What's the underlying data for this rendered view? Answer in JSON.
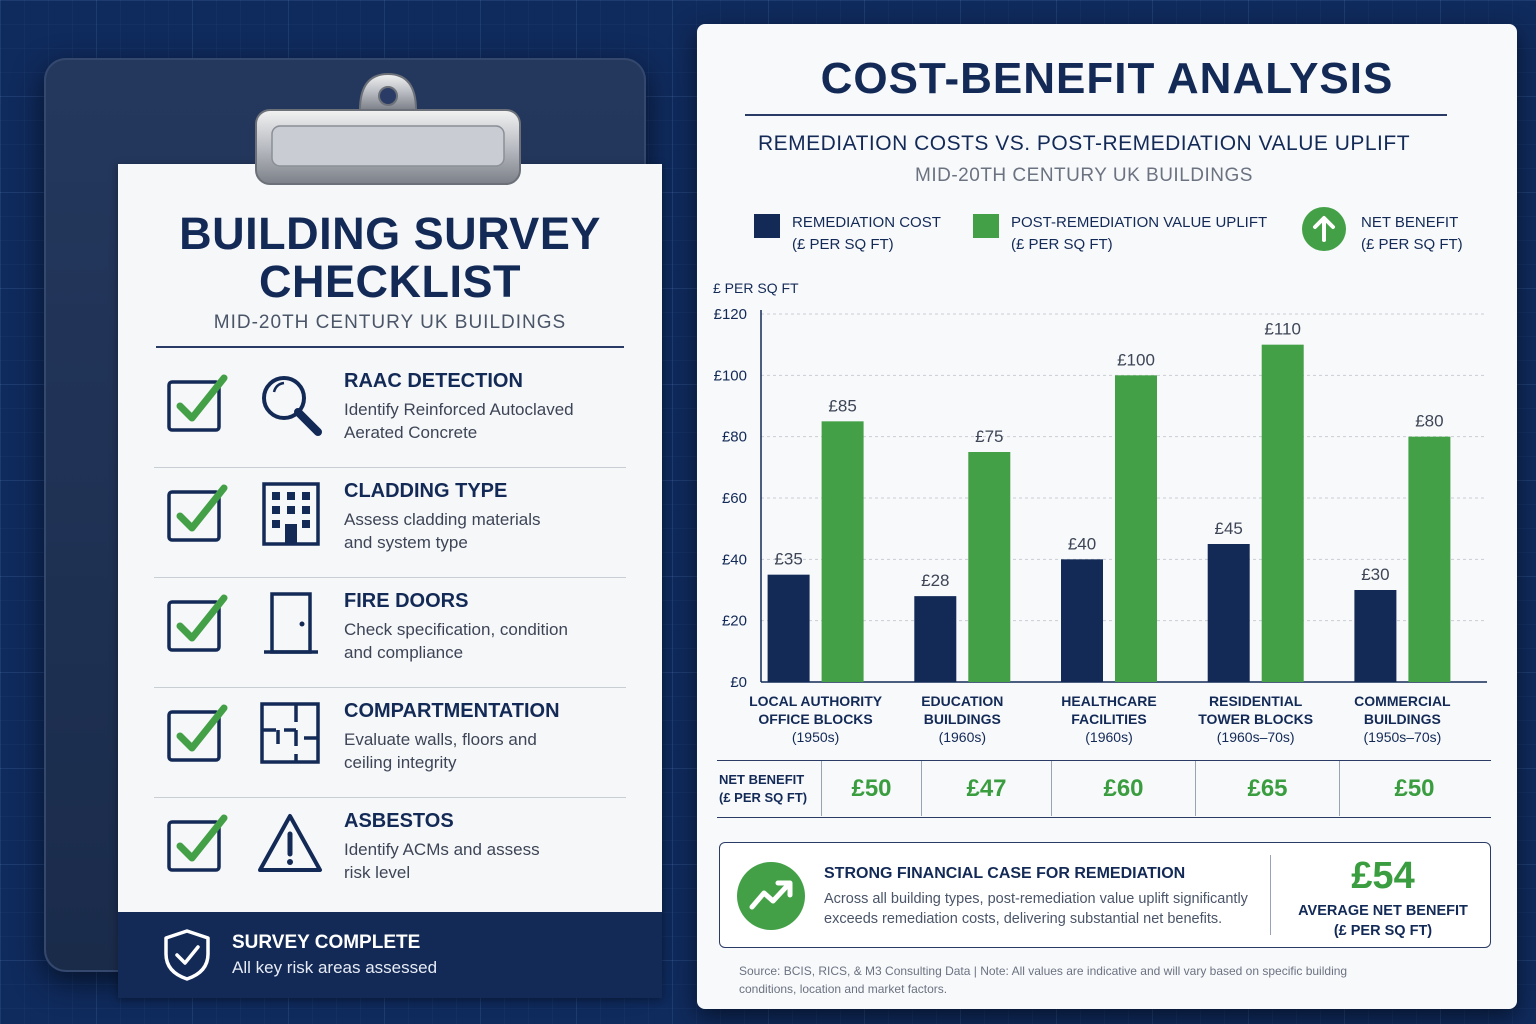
{
  "checklist": {
    "title_line1": "BUILDING SURVEY",
    "title_line2": "CHECKLIST",
    "subtitle": "MID-20TH CENTURY UK BUILDINGS",
    "items": [
      {
        "title": "RAAC DETECTION",
        "desc_line1": "Identify Reinforced Autoclaved",
        "desc_line2": "Aerated Concrete",
        "icon": "magnifier-icon"
      },
      {
        "title": "CLADDING TYPE",
        "desc_line1": "Assess cladding materials",
        "desc_line2": "and system type",
        "icon": "building-icon"
      },
      {
        "title": "FIRE DOORS",
        "desc_line1": "Check specification, condition",
        "desc_line2": "and compliance",
        "icon": "door-icon"
      },
      {
        "title": "COMPARTMENTATION",
        "desc_line1": "Evaluate walls, floors and",
        "desc_line2": "ceiling integrity",
        "icon": "floorplan-icon"
      },
      {
        "title": "ASBESTOS",
        "desc_line1": "Identify ACMs and assess",
        "desc_line2": "risk level",
        "icon": "warning-icon"
      }
    ],
    "footer": {
      "title": "SURVEY COMPLETE",
      "desc": "All key risk areas assessed",
      "icon": "shield-check-icon"
    }
  },
  "panel": {
    "title": "COST-BENEFIT ANALYSIS",
    "subtitle": "REMEDIATION COSTS VS. POST-REMEDIATION VALUE UPLIFT",
    "subtitle2": "MID-20TH CENTURY UK BUILDINGS",
    "legend": [
      {
        "line1": "REMEDIATION COST",
        "line2": "(£ PER SQ FT)"
      },
      {
        "line1": "POST-REMEDIATION VALUE UPLIFT",
        "line2": "(£ PER SQ FT)"
      },
      {
        "line1": "NET BENEFIT",
        "line2": "(£ PER SQ FT)"
      }
    ],
    "net_benefit_label_line1": "NET BENEFIT",
    "net_benefit_label_line2": "(£ PER SQ FT)",
    "summary": {
      "title": "STRONG FINANCIAL CASE FOR REMEDIATION",
      "desc_line1": "Across all building types, post-remediation value uplift significantly",
      "desc_line2": "exceeds remediation costs, delivering substantial net benefits.",
      "value": "£54",
      "label_line1": "AVERAGE NET BENEFIT",
      "label_line2": "(£ PER SQ FT)"
    },
    "source_line1": "Source: BCIS, RICS, & M3 Consulting Data  |  Note: All values are indicative and will vary based on specific building",
    "source_line2": "conditions, location and market factors."
  },
  "colors": {
    "navy": "#132a57",
    "green": "#3a9d3f",
    "accent_green": "#43a047"
  },
  "chart_data": {
    "type": "bar",
    "ylabel": "£ PER SQ FT",
    "ylim": [
      0,
      120
    ],
    "yticks": [
      0,
      20,
      40,
      60,
      80,
      100,
      120
    ],
    "ytick_labels": [
      "£0",
      "£20",
      "£40",
      "£60",
      "£80",
      "£100",
      "£120"
    ],
    "categories": [
      {
        "line1": "LOCAL AUTHORITY",
        "line2": "OFFICE BLOCKS",
        "period": "(1950s)"
      },
      {
        "line1": "EDUCATION",
        "line2": "BUILDINGS",
        "period": "(1960s)"
      },
      {
        "line1": "HEALTHCARE",
        "line2": "FACILITIES",
        "period": "(1960s)"
      },
      {
        "line1": "RESIDENTIAL",
        "line2": "TOWER BLOCKS",
        "period": "(1960s–70s)"
      },
      {
        "line1": "COMMERCIAL",
        "line2": "BUILDINGS",
        "period": "(1950s–70s)"
      }
    ],
    "series": [
      {
        "name": "REMEDIATION COST (£ PER SQ FT)",
        "color": "#132a57",
        "values": [
          35,
          28,
          40,
          45,
          30
        ],
        "labels": [
          "£35",
          "£28",
          "£40",
          "£45",
          "£30"
        ]
      },
      {
        "name": "POST-REMEDIATION VALUE UPLIFT (£ PER SQ FT)",
        "color": "#43a047",
        "values": [
          85,
          75,
          100,
          110,
          80
        ],
        "labels": [
          "£85",
          "£75",
          "£100",
          "£110",
          "£80"
        ]
      }
    ],
    "net_benefit": [
      "£50",
      "£47",
      "£60",
      "£65",
      "£50"
    ],
    "grid": true,
    "legend_position": "top"
  }
}
